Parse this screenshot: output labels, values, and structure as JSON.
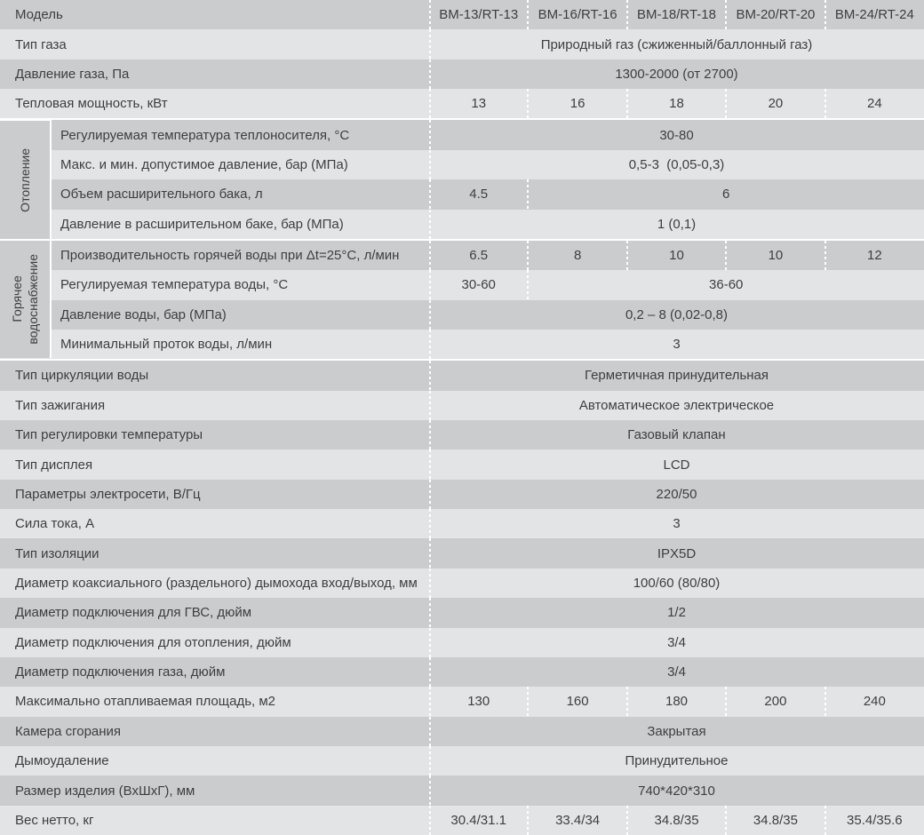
{
  "colors": {
    "row_dark": "#cbcccd",
    "row_light": "#e3e4e6",
    "text": "#3c3e40",
    "separator": "#ffffff"
  },
  "table": {
    "header": {
      "label": "Модель",
      "models": [
        "BM-13/RT-13",
        "BM-16/RT-16",
        "BM-18/RT-18",
        "BM-20/RT-20",
        "BM-24/RT-24"
      ]
    },
    "groups": [
      {
        "name": "Отопление",
        "lines": [
          "Отопление"
        ]
      },
      {
        "name": "Горячее водоснабжение",
        "lines": [
          "Горячее",
          "водоснабжение"
        ]
      }
    ],
    "rows": [
      {
        "label": "Тип газа",
        "value": "Природный газ (сжиженный/баллонный газ)"
      },
      {
        "label": "Давление газа, Па",
        "value": "1300-2000 (от 2700)"
      },
      {
        "label": "Тепловая мощность, кВт",
        "values": [
          "13",
          "16",
          "18",
          "20",
          "24"
        ]
      },
      {
        "label": "Регулируемая температура теплоносителя, °C",
        "value": "30-80",
        "group": "Отопление"
      },
      {
        "label": "Макс. и мин. допустимое давление, бар (МПа)",
        "value": "0,5-3  (0,05-0,3)",
        "group": "Отопление"
      },
      {
        "label": "Объем расширительного бака, л",
        "first": "4.5",
        "rest": "6",
        "group": "Отопление"
      },
      {
        "label": "Давление в расширительном баке, бар (МПа)",
        "value": "1 (0,1)",
        "group": "Отопление"
      },
      {
        "label": "Производительность горячей воды при Δt=25°C, л/мин",
        "values": [
          "6.5",
          "8",
          "10",
          "10",
          "12"
        ],
        "group": "Горячее водоснабжение"
      },
      {
        "label": "Регулируемая температура воды, °C",
        "first": "30-60",
        "rest": "36-60",
        "group": "Горячее водоснабжение"
      },
      {
        "label": "Давление воды, бар (МПа)",
        "value": "0,2 – 8 (0,02-0,8)",
        "group": "Горячее водоснабжение"
      },
      {
        "label": "Минимальный проток воды, л/мин",
        "value": "3",
        "group": "Горячее водоснабжение"
      },
      {
        "label": "Тип циркуляции воды",
        "value": "Герметичная принудительная"
      },
      {
        "label": "Тип зажигания",
        "value": "Автоматическое электрическое"
      },
      {
        "label": "Тип регулировки температуры",
        "value": "Газовый клапан"
      },
      {
        "label": "Тип дисплея",
        "value": "LCD"
      },
      {
        "label": "Параметры электросети, В/Гц",
        "value": "220/50"
      },
      {
        "label": "Сила тока, А",
        "value": "3"
      },
      {
        "label": "Тип изоляции",
        "value": "IPX5D"
      },
      {
        "label": "Диаметр коаксиального (раздельного) дымохода вход/выход, мм",
        "value": "100/60 (80/80)"
      },
      {
        "label": "Диаметр подключения для ГВС, дюйм",
        "value": "1/2"
      },
      {
        "label": "Диаметр подключения для отопления, дюйм",
        "value": "3/4"
      },
      {
        "label": "Диаметр подключения газа, дюйм",
        "value": "3/4"
      },
      {
        "label": "Максимально отапливаемая площадь, м2",
        "values": [
          "130",
          "160",
          "180",
          "200",
          "240"
        ]
      },
      {
        "label": "Камера сгорания",
        "value": "Закрытая"
      },
      {
        "label": "Дымоудаление",
        "value": "Принудительное"
      },
      {
        "label": "Размер изделия (ВхШхГ), мм",
        "value": "740*420*310"
      },
      {
        "label": "Вес нетто, кг",
        "values": [
          "30.4/31.1",
          "33.4/34",
          "34.8/35",
          "34.8/35",
          "35.4/35.6"
        ]
      }
    ]
  }
}
